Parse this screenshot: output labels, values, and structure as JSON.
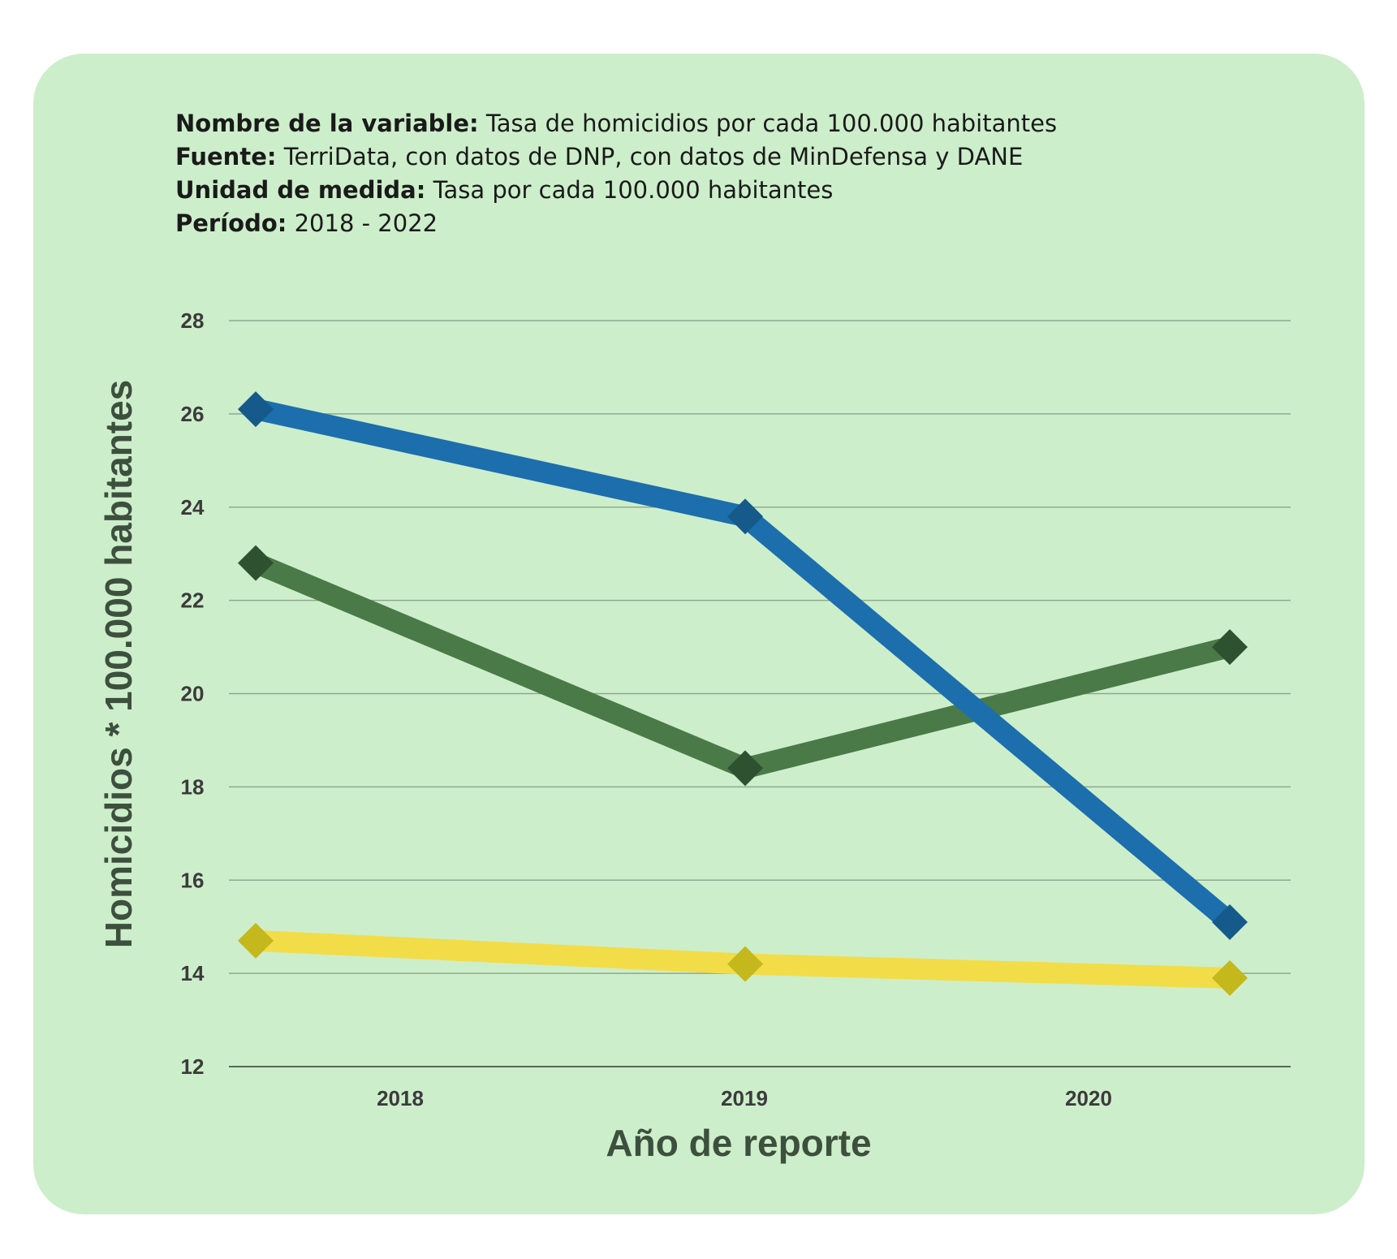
{
  "info": {
    "variable_label": "Nombre de la variable:",
    "variable_value": "Tasa de homicidios por cada 100.000 habitantes",
    "source_label": "Fuente:",
    "source_value": "TerriData, con datos de DNP,  con datos de MinDefensa y DANE",
    "unit_label": "Unidad de medida:",
    "unit_value": "Tasa por cada 100.000 habitantes",
    "period_label": "Período:",
    "period_value": "2018 - 2022"
  },
  "chart_data": {
    "type": "line",
    "xlabel": "Año de reporte",
    "ylabel": "Homicidios * 100.000 habitantes",
    "x_tick_labels": [
      "2018",
      "2019",
      "2020"
    ],
    "x": [
      0,
      1,
      2
    ],
    "ylim": [
      12,
      28
    ],
    "yticks": [
      12,
      14,
      16,
      18,
      20,
      22,
      24,
      26,
      28
    ],
    "grid": true,
    "series": [
      {
        "values": [
          26.1,
          23.8,
          15.1
        ],
        "color": "#1c6ead",
        "marker_color": "#155a8a"
      },
      {
        "values": [
          22.8,
          18.4,
          21.0
        ],
        "color": "#4a7a48",
        "marker_color": "#2e5230"
      },
      {
        "values": [
          14.7,
          14.2,
          13.9
        ],
        "color": "#f2dd48",
        "marker_color": "#c4b81c"
      }
    ]
  }
}
